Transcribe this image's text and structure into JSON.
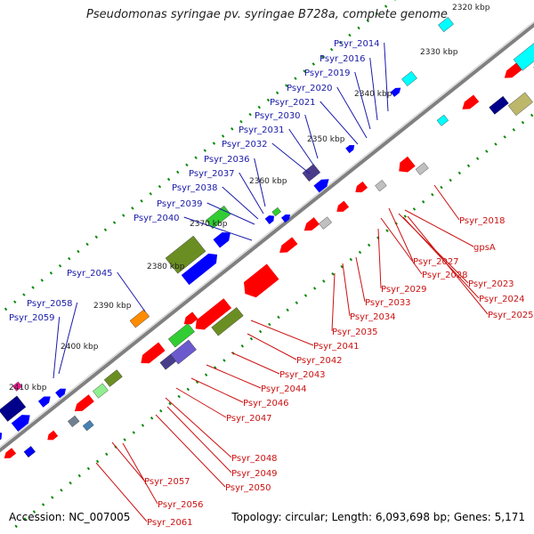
{
  "title": "Pseudomonas syringae pv. syringae B728a, complete genome",
  "accession": "Accession: NC_007005",
  "topology": "Topology: circular; Length: 6,093,698 bp; Genes: 5,171",
  "colors": {
    "backbone": "#888888",
    "forward_label": "#1a1aaa",
    "reverse_label": "#cc1111",
    "forward_strand": "#0000ff",
    "reverse_strand": "#ff0000",
    "marker": "#0a8a0a"
  },
  "ticks": [
    {
      "label": "2320 kbp"
    },
    {
      "label": "2330 kbp"
    },
    {
      "label": "2340 kbp"
    },
    {
      "label": "2350 kbp"
    },
    {
      "label": "2360 kbp"
    },
    {
      "label": "2370 kbp"
    },
    {
      "label": "2380 kbp"
    },
    {
      "label": "2390 kbp"
    },
    {
      "label": "2400 kbp"
    },
    {
      "label": "2410 kbp"
    }
  ],
  "forward_labels": [
    "Psyr_2014",
    "Psyr_2016",
    "Psyr_2019",
    "Psyr_2020",
    "Psyr_2021",
    "Psyr_2030",
    "Psyr_2031",
    "Psyr_2032",
    "Psyr_2036",
    "Psyr_2037",
    "Psyr_2038",
    "Psyr_2039",
    "Psyr_2040",
    "Psyr_2045",
    "Psyr_2058",
    "Psyr_2059"
  ],
  "reverse_labels": [
    "Psyr_2018",
    "gpsA",
    "Psyr_2027",
    "Psyr_2023",
    "Psyr_2028",
    "Psyr_2024",
    "Psyr_2029",
    "Psyr_2025",
    "Psyr_2033",
    "Psyr_2034",
    "Psyr_2035",
    "Psyr_2041",
    "Psyr_2042",
    "Psyr_2043",
    "Psyr_2044",
    "Psyr_2046",
    "Psyr_2047",
    "Psyr_2048",
    "Psyr_2049",
    "Psyr_2050",
    "Psyr_2057",
    "Psyr_2056",
    "Psyr_2061"
  ]
}
